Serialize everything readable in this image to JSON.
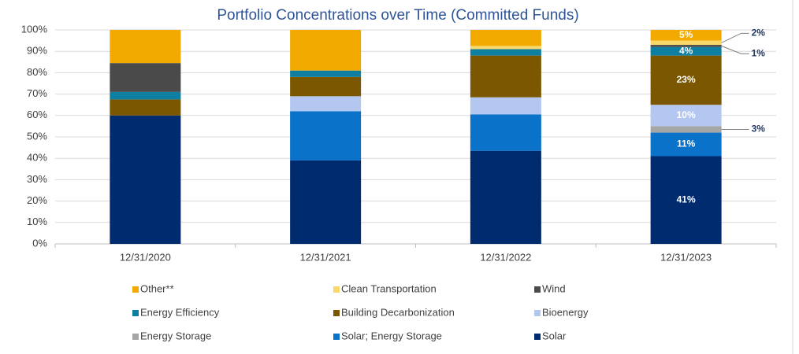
{
  "chart_data": {
    "type": "bar",
    "stacked": true,
    "title": "Portfolio Concentrations over Time (Committed Funds)",
    "categories": [
      "12/31/2020",
      "12/31/2021",
      "12/31/2022",
      "12/31/2023"
    ],
    "series": [
      {
        "name": "Solar",
        "color": "#002b6e",
        "values": [
          60,
          39,
          43.5,
          41
        ],
        "value_labels": [
          null,
          null,
          null,
          "41%"
        ]
      },
      {
        "name": "Solar; Energy Storage",
        "color": "#0a72c8",
        "values": [
          0,
          23,
          17,
          11
        ],
        "value_labels": [
          null,
          null,
          null,
          "11%"
        ]
      },
      {
        "name": "Energy Storage",
        "color": "#a6a6a6",
        "values": [
          0,
          0,
          0,
          3
        ],
        "value_labels": [
          null,
          null,
          null,
          "3%"
        ]
      },
      {
        "name": "Bioenergy",
        "color": "#b4c7f0",
        "values": [
          0,
          7,
          8,
          10
        ],
        "value_labels": [
          null,
          null,
          null,
          "10%"
        ]
      },
      {
        "name": "Building Decarbonization",
        "color": "#7a5700",
        "values": [
          7.5,
          9,
          19.5,
          23
        ],
        "value_labels": [
          null,
          null,
          null,
          "23%"
        ]
      },
      {
        "name": "Energy Efficiency",
        "color": "#0e7fa0",
        "values": [
          3.5,
          3,
          3,
          4
        ],
        "value_labels": [
          null,
          null,
          null,
          "4%"
        ]
      },
      {
        "name": "Wind",
        "color": "#4a4a4a",
        "values": [
          13.5,
          0,
          0,
          1
        ],
        "value_labels": [
          null,
          null,
          null,
          "1%"
        ]
      },
      {
        "name": "Clean Transportation",
        "color": "#f8d86a",
        "values": [
          0,
          0,
          1.5,
          2
        ],
        "value_labels": [
          null,
          null,
          null,
          "2%"
        ]
      },
      {
        "name": "Other**",
        "color": "#f2aa00",
        "values": [
          15.5,
          19,
          7.5,
          5
        ],
        "value_labels": [
          null,
          null,
          null,
          "5%"
        ]
      }
    ],
    "ylim": [
      0,
      100
    ],
    "yticks": [
      {
        "value": 0,
        "label": "0%"
      },
      {
        "value": 10,
        "label": "10%"
      },
      {
        "value": 20,
        "label": "20%"
      },
      {
        "value": 30,
        "label": "30%"
      },
      {
        "value": 40,
        "label": "40%"
      },
      {
        "value": 50,
        "label": "50%"
      },
      {
        "value": 60,
        "label": "60%"
      },
      {
        "value": 70,
        "label": "70%"
      },
      {
        "value": 80,
        "label": "80%"
      },
      {
        "value": 90,
        "label": "90%"
      },
      {
        "value": 100,
        "label": "100%"
      }
    ],
    "grid": true,
    "legend": "bottom"
  }
}
